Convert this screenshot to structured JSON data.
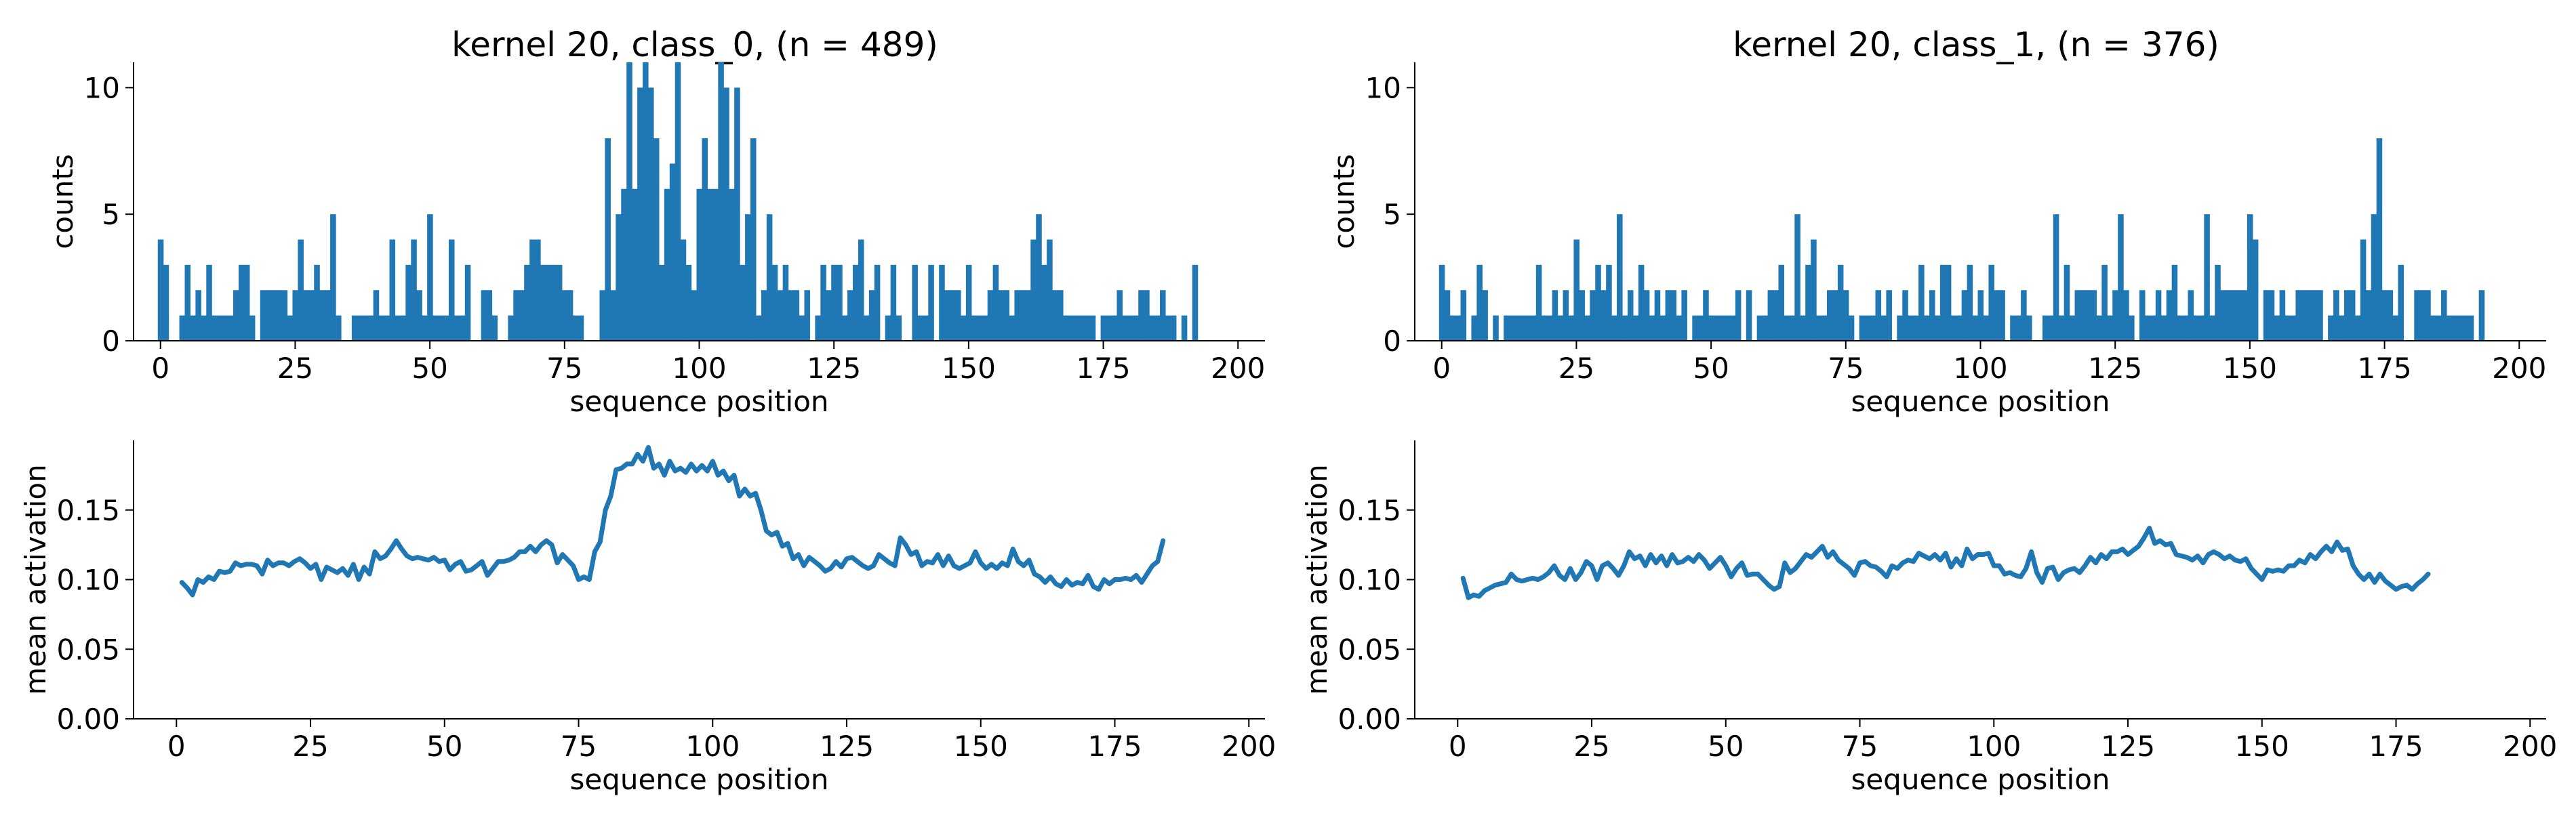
{
  "colors": {
    "series": "#1f77b4",
    "axis": "#000000"
  },
  "chart_data": [
    {
      "type": "bar",
      "panel": "top-left",
      "title": "kernel 20, class_0, (n = 489)",
      "xlabel": "sequence position",
      "ylabel": "counts",
      "xlim": [
        -5,
        205
      ],
      "ylim": [
        0,
        11
      ],
      "xticks": [
        0,
        25,
        50,
        75,
        100,
        125,
        150,
        175,
        200
      ],
      "yticks": [
        0,
        5,
        10
      ],
      "x_start": 0,
      "values": [
        4,
        3,
        0,
        0,
        1,
        3,
        1,
        2,
        1,
        3,
        1,
        1,
        1,
        1,
        2,
        3,
        3,
        1,
        0,
        2,
        2,
        2,
        2,
        2,
        1,
        2,
        4,
        2,
        2,
        3,
        2,
        2,
        5,
        1,
        0,
        0,
        1,
        1,
        1,
        1,
        2,
        1,
        1,
        4,
        1,
        1,
        3,
        4,
        2,
        1,
        5,
        1,
        1,
        1,
        4,
        1,
        1,
        3,
        0,
        0,
        2,
        2,
        1,
        0,
        0,
        1,
        2,
        2,
        3,
        4,
        4,
        3,
        3,
        3,
        3,
        2,
        2,
        1,
        1,
        0,
        0,
        0,
        2,
        8,
        2,
        5,
        6,
        11,
        6,
        10,
        11,
        10,
        8,
        3,
        6,
        7,
        11,
        4,
        3,
        2,
        6,
        8,
        6,
        6,
        11,
        10,
        6,
        10,
        3,
        5,
        8,
        1,
        2,
        5,
        3,
        2,
        3,
        2,
        2,
        1,
        2,
        0,
        1,
        3,
        2,
        3,
        3,
        1,
        2,
        3,
        4,
        1,
        2,
        3,
        0,
        1,
        3,
        1,
        0,
        0,
        3,
        1,
        1,
        3,
        0,
        3,
        2,
        2,
        2,
        1,
        3,
        1,
        1,
        1,
        2,
        3,
        2,
        2,
        1,
        2,
        2,
        2,
        4,
        5,
        3,
        4,
        2,
        2,
        1,
        1,
        1,
        1,
        1,
        1,
        0,
        1,
        1,
        1,
        2,
        1,
        1,
        1,
        2,
        2,
        1,
        1,
        2,
        1,
        1,
        0,
        1,
        0,
        3
      ]
    },
    {
      "type": "line",
      "panel": "bottom-left",
      "xlabel": "sequence position",
      "ylabel": "mean activation",
      "xlim": [
        -8,
        203
      ],
      "ylim": [
        0,
        0.2
      ],
      "xticks": [
        0,
        25,
        50,
        75,
        100,
        125,
        150,
        175,
        200
      ],
      "yticks": [
        "0.00",
        "0.05",
        "0.10",
        "0.15"
      ],
      "x_start": 1,
      "values": [
        0.098,
        0.094,
        0.089,
        0.1,
        0.098,
        0.102,
        0.1,
        0.106,
        0.105,
        0.106,
        0.112,
        0.11,
        0.111,
        0.111,
        0.11,
        0.104,
        0.114,
        0.11,
        0.112,
        0.112,
        0.11,
        0.113,
        0.115,
        0.112,
        0.108,
        0.111,
        0.1,
        0.109,
        0.107,
        0.105,
        0.108,
        0.103,
        0.111,
        0.1,
        0.109,
        0.104,
        0.12,
        0.115,
        0.117,
        0.122,
        0.128,
        0.122,
        0.117,
        0.115,
        0.116,
        0.115,
        0.114,
        0.116,
        0.113,
        0.114,
        0.107,
        0.111,
        0.113,
        0.106,
        0.107,
        0.11,
        0.113,
        0.103,
        0.108,
        0.113,
        0.113,
        0.114,
        0.116,
        0.12,
        0.12,
        0.124,
        0.12,
        0.125,
        0.128,
        0.125,
        0.112,
        0.118,
        0.114,
        0.11,
        0.1,
        0.102,
        0.1,
        0.12,
        0.127,
        0.15,
        0.16,
        0.179,
        0.18,
        0.183,
        0.183,
        0.19,
        0.185,
        0.195,
        0.18,
        0.183,
        0.175,
        0.185,
        0.178,
        0.18,
        0.177,
        0.183,
        0.178,
        0.182,
        0.178,
        0.185,
        0.175,
        0.178,
        0.171,
        0.175,
        0.16,
        0.165,
        0.16,
        0.162,
        0.15,
        0.135,
        0.132,
        0.134,
        0.124,
        0.126,
        0.115,
        0.118,
        0.11,
        0.116,
        0.113,
        0.11,
        0.106,
        0.108,
        0.113,
        0.109,
        0.115,
        0.116,
        0.113,
        0.11,
        0.108,
        0.11,
        0.118,
        0.115,
        0.112,
        0.11,
        0.13,
        0.125,
        0.118,
        0.12,
        0.11,
        0.113,
        0.112,
        0.118,
        0.11,
        0.117,
        0.11,
        0.108,
        0.11,
        0.112,
        0.12,
        0.112,
        0.108,
        0.111,
        0.108,
        0.112,
        0.11,
        0.122,
        0.113,
        0.11,
        0.114,
        0.104,
        0.102,
        0.098,
        0.102,
        0.097,
        0.095,
        0.1,
        0.096,
        0.098,
        0.097,
        0.103,
        0.095,
        0.093,
        0.1,
        0.097,
        0.1,
        0.1,
        0.101,
        0.1,
        0.103,
        0.098,
        0.104,
        0.11,
        0.113,
        0.128
      ]
    },
    {
      "type": "bar",
      "panel": "top-right",
      "title": "kernel 20, class_1, (n = 376)",
      "xlabel": "sequence position",
      "ylabel": "counts",
      "xlim": [
        -5,
        205
      ],
      "ylim": [
        0,
        11
      ],
      "xticks": [
        0,
        25,
        50,
        75,
        100,
        125,
        150,
        175,
        200
      ],
      "yticks": [
        0,
        5,
        10
      ],
      "x_start": 0,
      "values": [
        3,
        2,
        1,
        1,
        2,
        0,
        1,
        3,
        2,
        0,
        1,
        0,
        1,
        1,
        1,
        1,
        1,
        1,
        3,
        1,
        1,
        2,
        1,
        2,
        1,
        4,
        2,
        1,
        2,
        3,
        2,
        3,
        1,
        5,
        1,
        2,
        1,
        3,
        2,
        1,
        2,
        1,
        2,
        2,
        1,
        2,
        0,
        1,
        1,
        2,
        1,
        1,
        1,
        1,
        1,
        2,
        0,
        2,
        0,
        1,
        1,
        2,
        2,
        3,
        1,
        1,
        5,
        1,
        3,
        4,
        1,
        1,
        2,
        2,
        3,
        2,
        1,
        0,
        1,
        1,
        1,
        2,
        1,
        2,
        0,
        1,
        2,
        1,
        1,
        3,
        1,
        2,
        1,
        3,
        3,
        1,
        1,
        2,
        3,
        1,
        2,
        1,
        3,
        2,
        2,
        0,
        1,
        1,
        2,
        1,
        0,
        0,
        1,
        1,
        5,
        1,
        3,
        1,
        2,
        2,
        2,
        2,
        1,
        3,
        1,
        2,
        5,
        2,
        1,
        0,
        2,
        1,
        1,
        2,
        1,
        2,
        3,
        1,
        1,
        2,
        1,
        1,
        5,
        1,
        3,
        2,
        2,
        2,
        2,
        2,
        5,
        4,
        0,
        2,
        2,
        1,
        2,
        1,
        1,
        2,
        2,
        2,
        2,
        2,
        0,
        1,
        2,
        1,
        2,
        2,
        1,
        4,
        2,
        5,
        8,
        2,
        2,
        1,
        3,
        0,
        0,
        2,
        2,
        2,
        1,
        1,
        2,
        1,
        1,
        1,
        1,
        1,
        0,
        2
      ]
    },
    {
      "type": "line",
      "panel": "bottom-right",
      "xlabel": "sequence position",
      "ylabel": "mean activation",
      "xlim": [
        -8,
        203
      ],
      "ylim": [
        0,
        0.2
      ],
      "xticks": [
        0,
        25,
        50,
        75,
        100,
        125,
        150,
        175,
        200
      ],
      "yticks": [
        "0.00",
        "0.05",
        "0.10",
        "0.15"
      ],
      "x_start": 1,
      "values": [
        0.101,
        0.087,
        0.089,
        0.088,
        0.092,
        0.094,
        0.096,
        0.097,
        0.098,
        0.104,
        0.1,
        0.099,
        0.1,
        0.101,
        0.1,
        0.102,
        0.105,
        0.11,
        0.103,
        0.1,
        0.108,
        0.1,
        0.105,
        0.113,
        0.11,
        0.1,
        0.11,
        0.112,
        0.108,
        0.103,
        0.11,
        0.12,
        0.115,
        0.117,
        0.11,
        0.118,
        0.112,
        0.117,
        0.11,
        0.118,
        0.112,
        0.113,
        0.116,
        0.113,
        0.118,
        0.114,
        0.108,
        0.112,
        0.116,
        0.11,
        0.102,
        0.108,
        0.112,
        0.103,
        0.104,
        0.104,
        0.1,
        0.096,
        0.093,
        0.095,
        0.112,
        0.105,
        0.108,
        0.113,
        0.118,
        0.116,
        0.12,
        0.124,
        0.116,
        0.12,
        0.114,
        0.111,
        0.108,
        0.103,
        0.112,
        0.113,
        0.11,
        0.109,
        0.106,
        0.102,
        0.11,
        0.108,
        0.112,
        0.114,
        0.113,
        0.119,
        0.117,
        0.115,
        0.118,
        0.114,
        0.119,
        0.109,
        0.115,
        0.11,
        0.122,
        0.115,
        0.118,
        0.118,
        0.119,
        0.11,
        0.11,
        0.104,
        0.105,
        0.103,
        0.102,
        0.108,
        0.12,
        0.105,
        0.098,
        0.108,
        0.109,
        0.1,
        0.105,
        0.107,
        0.108,
        0.105,
        0.11,
        0.116,
        0.112,
        0.118,
        0.115,
        0.12,
        0.12,
        0.122,
        0.118,
        0.121,
        0.124,
        0.13,
        0.137,
        0.126,
        0.128,
        0.125,
        0.126,
        0.118,
        0.117,
        0.116,
        0.114,
        0.117,
        0.112,
        0.118,
        0.12,
        0.118,
        0.115,
        0.117,
        0.114,
        0.113,
        0.115,
        0.108,
        0.104,
        0.1,
        0.107,
        0.106,
        0.107,
        0.106,
        0.11,
        0.11,
        0.114,
        0.112,
        0.118,
        0.115,
        0.12,
        0.124,
        0.12,
        0.127,
        0.121,
        0.122,
        0.11,
        0.104,
        0.1,
        0.104,
        0.098,
        0.104,
        0.099,
        0.096,
        0.093,
        0.095,
        0.096,
        0.093,
        0.097,
        0.1,
        0.104
      ]
    }
  ]
}
